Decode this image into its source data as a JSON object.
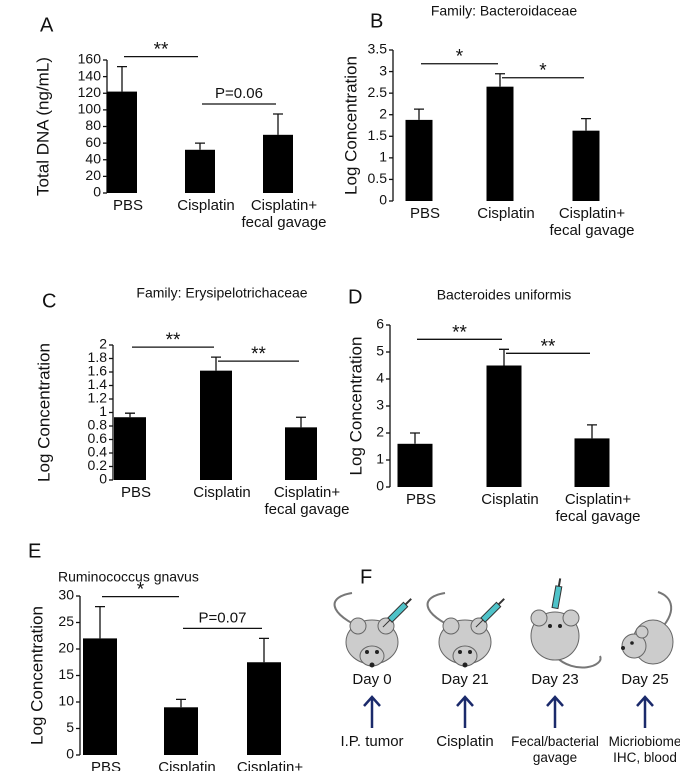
{
  "chart_data": [
    {
      "type": "bar",
      "panel": "A",
      "ylabel": "Total DNA (ng/mL)",
      "categories": [
        "PBS",
        "Cisplatin",
        "Cisplatin+\nfecal gavage"
      ],
      "values": [
        122,
        52,
        70
      ],
      "errors": [
        30,
        8,
        25
      ],
      "color": "#000000",
      "ylim": [
        0,
        160
      ],
      "yticks": [
        0,
        20,
        40,
        60,
        80,
        100,
        120,
        140,
        160
      ],
      "annotations": [
        {
          "label": "**",
          "between": [
            "PBS",
            "Cisplatin"
          ]
        },
        {
          "label": "P=0.06",
          "between": [
            "Cisplatin",
            "Cisplatin+\nfecal gavage"
          ]
        }
      ]
    },
    {
      "type": "bar",
      "panel": "B",
      "title": "Family: Bacteroidaceae",
      "ylabel": "Log Concentration",
      "categories": [
        "PBS",
        "Cisplatin",
        "Cisplatin+\nfecal gavage"
      ],
      "values": [
        1.88,
        2.65,
        1.63
      ],
      "errors": [
        0.25,
        0.3,
        0.28
      ],
      "color": "#000000",
      "ylim": [
        0,
        3.5
      ],
      "yticks": [
        0,
        0.5,
        1,
        1.5,
        2,
        2.5,
        3,
        3.5
      ],
      "annotations": [
        {
          "label": "*",
          "between": [
            "PBS",
            "Cisplatin"
          ]
        },
        {
          "label": "*",
          "between": [
            "Cisplatin",
            "Cisplatin+\nfecal gavage"
          ]
        }
      ]
    },
    {
      "type": "bar",
      "panel": "C",
      "title": "Family: Erysipelotrichaceae",
      "ylabel": "Log Concentration",
      "categories": [
        "PBS",
        "Cisplatin",
        "Cisplatin+\nfecal gavage"
      ],
      "values": [
        0.93,
        1.62,
        0.78
      ],
      "errors": [
        0.06,
        0.2,
        0.15
      ],
      "color": "#000000",
      "ylim": [
        0,
        2
      ],
      "yticks": [
        0,
        0.2,
        0.4,
        0.6,
        0.8,
        1,
        1.2,
        1.4,
        1.6,
        1.8,
        2
      ],
      "annotations": [
        {
          "label": "**",
          "between": [
            "PBS",
            "Cisplatin"
          ]
        },
        {
          "label": "**",
          "between": [
            "Cisplatin",
            "Cisplatin+\nfecal gavage"
          ]
        }
      ]
    },
    {
      "type": "bar",
      "panel": "D",
      "title": "Bacteroides uniformis",
      "ylabel": "Log Concentration",
      "categories": [
        "PBS",
        "Cisplatin",
        "Cisplatin+\nfecal gavage"
      ],
      "values": [
        1.6,
        4.5,
        1.8
      ],
      "errors": [
        0.4,
        0.6,
        0.5
      ],
      "color": "#000000",
      "ylim": [
        0,
        6
      ],
      "yticks": [
        0,
        1,
        2,
        3,
        4,
        5,
        6
      ],
      "annotations": [
        {
          "label": "**",
          "between": [
            "PBS",
            "Cisplatin"
          ]
        },
        {
          "label": "**",
          "between": [
            "Cisplatin",
            "Cisplatin+\nfecal gavage"
          ]
        }
      ]
    },
    {
      "type": "bar",
      "panel": "E",
      "title": "Ruminococcus gnavus",
      "ylabel": "Log Concentration",
      "categories": [
        "PBS",
        "Cisplatin",
        "Cisplatin+\nfecal gavage"
      ],
      "values": [
        22,
        9,
        17.5
      ],
      "errors": [
        6,
        1.5,
        4.5
      ],
      "color": "#000000",
      "ylim": [
        0,
        30
      ],
      "yticks": [
        0,
        5,
        10,
        15,
        20,
        25,
        30
      ],
      "annotations": [
        {
          "label": "*",
          "between": [
            "PBS",
            "Cisplatin"
          ]
        },
        {
          "label": "P=0.07",
          "between": [
            "Cisplatin",
            "Cisplatin+\nfecal gavage"
          ]
        }
      ]
    }
  ],
  "timeline": {
    "panel": "F",
    "steps": [
      {
        "day": "Day 0",
        "event": "I.P. tumor"
      },
      {
        "day": "Day 21",
        "event": "Cisplatin"
      },
      {
        "day": "Day 23",
        "event": "Fecal/bacterial\ngavage"
      },
      {
        "day": "Day 25",
        "event": "Micriobiome\nIHC, blood"
      }
    ]
  }
}
